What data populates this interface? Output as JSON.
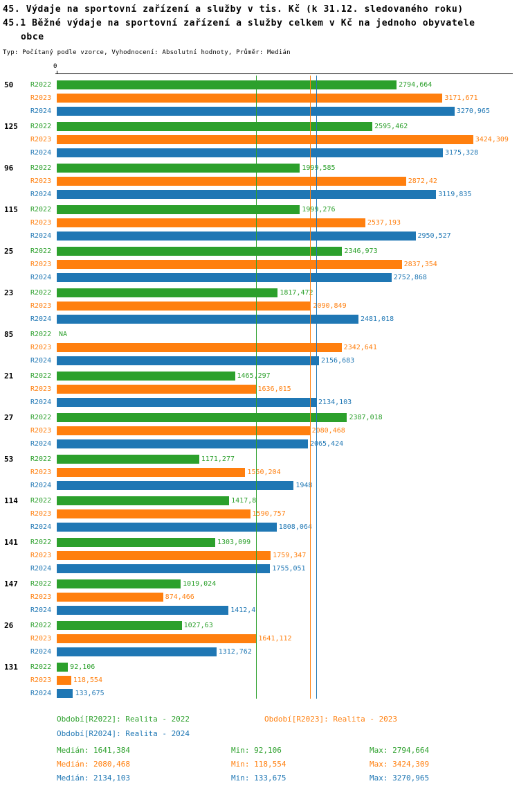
{
  "header": {
    "title_line1": "45. Výdaje na sportovní zařízení a služby v tis. Kč (k 31.12. sledovaného roku)",
    "title_line2": "45.1 Běžné výdaje na sportovní zařízení a služby celkem v Kč na jednoho obyvatele obce",
    "meta": "Typ: Počítaný podle vzorce, Vyhodnocení: Absolutní hodnoty, Průměr: Medián"
  },
  "axis": {
    "zero_label": "0"
  },
  "colors": {
    "r2022": "#2ca02c",
    "r2023": "#ff7f0e",
    "r2024": "#1f77b4"
  },
  "chart_data": {
    "type": "bar",
    "orientation": "horizontal",
    "title": "45.1 Běžné výdaje na sportovní zařízení a služby celkem v Kč na jednoho obyvatele obce",
    "series_labels": [
      "R2022",
      "R2023",
      "R2024"
    ],
    "xlim": [
      0,
      3750
    ],
    "grid": false,
    "groups": [
      {
        "label": "50",
        "bars": [
          {
            "period": "R2022",
            "value": 2794.664,
            "display": "2794,664"
          },
          {
            "period": "R2023",
            "value": 3171.671,
            "display": "3171,671"
          },
          {
            "period": "R2024",
            "value": 3270.965,
            "display": "3270,965"
          }
        ]
      },
      {
        "label": "125",
        "bars": [
          {
            "period": "R2022",
            "value": 2595.462,
            "display": "2595,462"
          },
          {
            "period": "R2023",
            "value": 3424.309,
            "display": "3424,309"
          },
          {
            "period": "R2024",
            "value": 3175.328,
            "display": "3175,328"
          }
        ]
      },
      {
        "label": "96",
        "bars": [
          {
            "period": "R2022",
            "value": 1999.585,
            "display": "1999,585"
          },
          {
            "period": "R2023",
            "value": 2872.42,
            "display": "2872,42"
          },
          {
            "period": "R2024",
            "value": 3119.835,
            "display": "3119,835"
          }
        ]
      },
      {
        "label": "115",
        "bars": [
          {
            "period": "R2022",
            "value": 1999.276,
            "display": "1999,276"
          },
          {
            "period": "R2023",
            "value": 2537.193,
            "display": "2537,193"
          },
          {
            "period": "R2024",
            "value": 2950.527,
            "display": "2950,527"
          }
        ]
      },
      {
        "label": "25",
        "bars": [
          {
            "period": "R2022",
            "value": 2346.973,
            "display": "2346,973"
          },
          {
            "period": "R2023",
            "value": 2837.354,
            "display": "2837,354"
          },
          {
            "period": "R2024",
            "value": 2752.868,
            "display": "2752,868"
          }
        ]
      },
      {
        "label": "23",
        "bars": [
          {
            "period": "R2022",
            "value": 1817.472,
            "display": "1817,472"
          },
          {
            "period": "R2023",
            "value": 2090.849,
            "display": "2090,849"
          },
          {
            "period": "R2024",
            "value": 2481.018,
            "display": "2481,018"
          }
        ]
      },
      {
        "label": "85",
        "bars": [
          {
            "period": "R2022",
            "value": null,
            "display": "NA"
          },
          {
            "period": "R2023",
            "value": 2342.641,
            "display": "2342,641"
          },
          {
            "period": "R2024",
            "value": 2156.683,
            "display": "2156,683"
          }
        ]
      },
      {
        "label": "21",
        "bars": [
          {
            "period": "R2022",
            "value": 1465.297,
            "display": "1465,297"
          },
          {
            "period": "R2023",
            "value": 1636.015,
            "display": "1636,015"
          },
          {
            "period": "R2024",
            "value": 2134.103,
            "display": "2134,103"
          }
        ]
      },
      {
        "label": "27",
        "bars": [
          {
            "period": "R2022",
            "value": 2387.018,
            "display": "2387,018"
          },
          {
            "period": "R2023",
            "value": 2080.468,
            "display": "2080,468"
          },
          {
            "period": "R2024",
            "value": 2065.424,
            "display": "2065,424"
          }
        ]
      },
      {
        "label": "53",
        "bars": [
          {
            "period": "R2022",
            "value": 1171.277,
            "display": "1171,277"
          },
          {
            "period": "R2023",
            "value": 1550.204,
            "display": "1550,204"
          },
          {
            "period": "R2024",
            "value": 1948,
            "display": "1948"
          }
        ]
      },
      {
        "label": "114",
        "bars": [
          {
            "period": "R2022",
            "value": 1417.8,
            "display": "1417,8"
          },
          {
            "period": "R2023",
            "value": 1590.757,
            "display": "1590,757"
          },
          {
            "period": "R2024",
            "value": 1808.064,
            "display": "1808,064"
          }
        ]
      },
      {
        "label": "141",
        "bars": [
          {
            "period": "R2022",
            "value": 1303.099,
            "display": "1303,099"
          },
          {
            "period": "R2023",
            "value": 1759.347,
            "display": "1759,347"
          },
          {
            "period": "R2024",
            "value": 1755.051,
            "display": "1755,051"
          }
        ]
      },
      {
        "label": "147",
        "bars": [
          {
            "period": "R2022",
            "value": 1019.024,
            "display": "1019,024"
          },
          {
            "period": "R2023",
            "value": 874.466,
            "display": "874,466"
          },
          {
            "period": "R2024",
            "value": 1412.4,
            "display": "1412,4"
          }
        ]
      },
      {
        "label": "26",
        "bars": [
          {
            "period": "R2022",
            "value": 1027.63,
            "display": "1027,63"
          },
          {
            "period": "R2023",
            "value": 1641.112,
            "display": "1641,112"
          },
          {
            "period": "R2024",
            "value": 1312.762,
            "display": "1312,762"
          }
        ]
      },
      {
        "label": "131",
        "bars": [
          {
            "period": "R2022",
            "value": 92.106,
            "display": "92,106"
          },
          {
            "period": "R2023",
            "value": 118.554,
            "display": "118,554"
          },
          {
            "period": "R2024",
            "value": 133.675,
            "display": "133,675"
          }
        ]
      }
    ],
    "medians": {
      "R2022": 1641.384,
      "R2023": 2080.468,
      "R2024": 2134.103
    }
  },
  "legend": [
    {
      "label": "Období[R2022]: Realita - 2022",
      "color": "#2ca02c"
    },
    {
      "label": "Období[R2023]: Realita - 2023",
      "color": "#ff7f0e"
    },
    {
      "label": "Období[R2024]: Realita - 2024",
      "color": "#1f77b4"
    }
  ],
  "stats": [
    {
      "median": "Medián: 1641,384",
      "min": "Min: 92,106",
      "max": "Max: 2794,664",
      "color": "#2ca02c"
    },
    {
      "median": "Medián: 2080,468",
      "min": "Min: 118,554",
      "max": "Max: 3424,309",
      "color": "#ff7f0e"
    },
    {
      "median": "Medián: 2134,103",
      "min": "Min: 133,675",
      "max": "Max: 3270,965",
      "color": "#1f77b4"
    }
  ]
}
